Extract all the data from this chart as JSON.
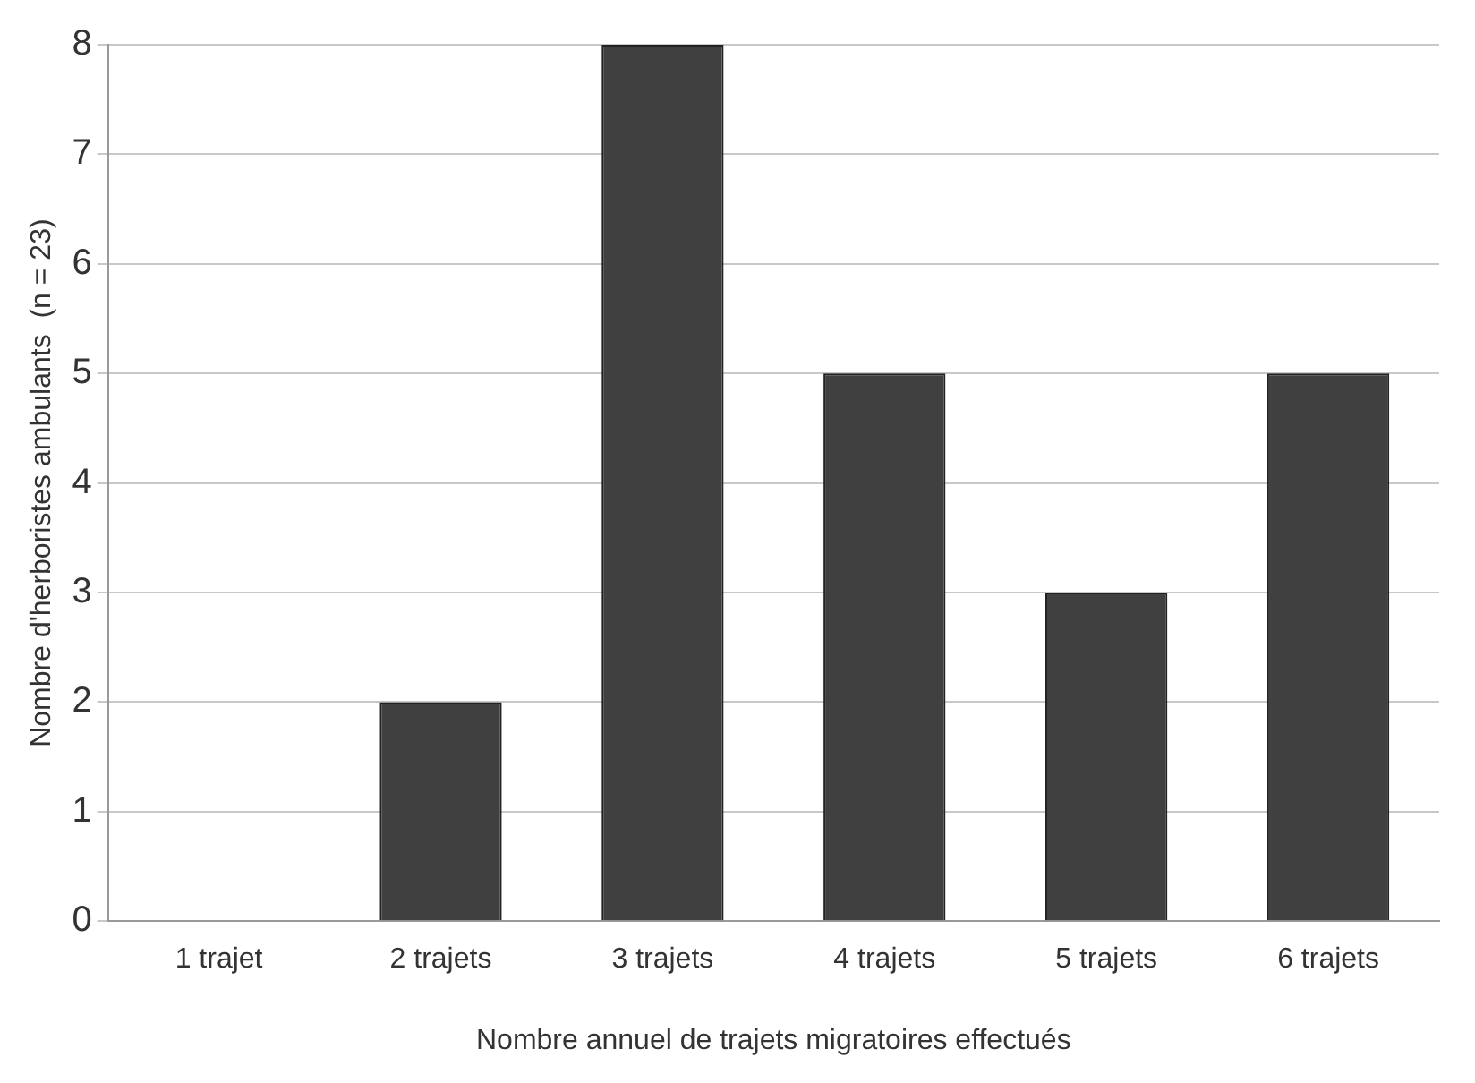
{
  "chart_data": {
    "type": "bar",
    "xlabel": "Nombre annuel de trajets migratoires effectués",
    "ylabel": "Nombre d'herboristes ambulants  (n = 23)",
    "categories": [
      "1 trajet",
      "2 trajets",
      "3 trajets",
      "4 trajets",
      "5 trajets",
      "6 trajets"
    ],
    "values": [
      0,
      2,
      8,
      5,
      3,
      5
    ],
    "color": "#404040",
    "ylim": [
      0,
      8
    ],
    "yticks": [
      0,
      1,
      2,
      3,
      4,
      5,
      6,
      7,
      8
    ],
    "grid": "y",
    "legend": false
  }
}
